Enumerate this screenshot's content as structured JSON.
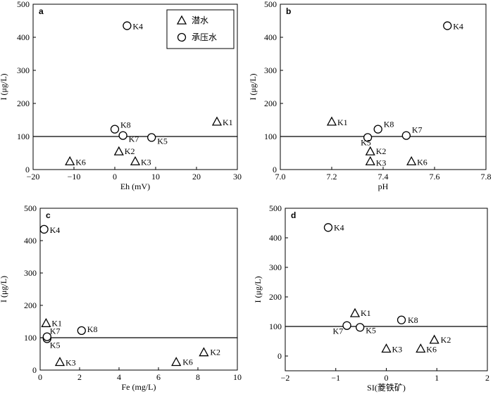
{
  "legend": {
    "phreatic": "潜水",
    "confined": "承压水"
  },
  "chart_data": [
    {
      "type": "scatter",
      "panel_label": "a",
      "xlabel": "Eh (mV)",
      "ylabel": "I (μg/L)",
      "xlim": [
        -20,
        30
      ],
      "ylim": [
        0,
        500
      ],
      "xticks": [
        -20,
        -10,
        0,
        10,
        20,
        30
      ],
      "xtick_labels": [
        "−20",
        "−10",
        "0",
        "10",
        "20",
        "30"
      ],
      "yticks": [
        0,
        100,
        200,
        300,
        400,
        500
      ],
      "ytick_labels": [
        "0",
        "100",
        "200",
        "300",
        "400",
        "500"
      ],
      "reference_line_y": 100,
      "legend_position": "top-right",
      "points": [
        {
          "label": "K1",
          "x": 25,
          "y": 145,
          "marker": "triangle"
        },
        {
          "label": "K2",
          "x": 1,
          "y": 55,
          "marker": "triangle"
        },
        {
          "label": "K3",
          "x": 5,
          "y": 25,
          "marker": "triangle"
        },
        {
          "label": "K6",
          "x": -11,
          "y": 25,
          "marker": "triangle"
        },
        {
          "label": "K4",
          "x": 3,
          "y": 435,
          "marker": "circle"
        },
        {
          "label": "K5",
          "x": 9,
          "y": 97,
          "marker": "circle"
        },
        {
          "label": "K7",
          "x": 2,
          "y": 103,
          "marker": "circle"
        },
        {
          "label": "K8",
          "x": 0,
          "y": 122,
          "marker": "circle"
        }
      ]
    },
    {
      "type": "scatter",
      "panel_label": "b",
      "xlabel": "pH",
      "ylabel": "I (μg/L)",
      "xlim": [
        7.0,
        7.8
      ],
      "ylim": [
        0,
        500
      ],
      "xticks": [
        7.0,
        7.2,
        7.4,
        7.6,
        7.8
      ],
      "xtick_labels": [
        "7.0",
        "7.2",
        "7.4",
        "7.6",
        "7.8"
      ],
      "yticks": [
        0,
        100,
        200,
        300,
        400,
        500
      ],
      "ytick_labels": [
        "0",
        "100",
        "200",
        "300",
        "400",
        "500"
      ],
      "reference_line_y": 100,
      "points": [
        {
          "label": "K1",
          "x": 7.2,
          "y": 145,
          "marker": "triangle"
        },
        {
          "label": "K2",
          "x": 7.35,
          "y": 55,
          "marker": "triangle"
        },
        {
          "label": "K3",
          "x": 7.35,
          "y": 25,
          "marker": "triangle"
        },
        {
          "label": "K6",
          "x": 7.51,
          "y": 25,
          "marker": "triangle"
        },
        {
          "label": "K4",
          "x": 7.65,
          "y": 435,
          "marker": "circle"
        },
        {
          "label": "K5",
          "x": 7.34,
          "y": 97,
          "marker": "circle"
        },
        {
          "label": "K7",
          "x": 7.49,
          "y": 103,
          "marker": "circle"
        },
        {
          "label": "K8",
          "x": 7.38,
          "y": 122,
          "marker": "circle"
        }
      ]
    },
    {
      "type": "scatter",
      "panel_label": "c",
      "xlabel": "Fe (mg/L)",
      "ylabel": "I (μg/L)",
      "xlim": [
        0,
        10
      ],
      "ylim": [
        0,
        500
      ],
      "xticks": [
        0,
        2,
        4,
        6,
        8,
        10
      ],
      "xtick_labels": [
        "0",
        "2",
        "4",
        "6",
        "8",
        "10"
      ],
      "yticks": [
        0,
        100,
        200,
        300,
        400,
        500
      ],
      "ytick_labels": [
        "0",
        "100",
        "200",
        "300",
        "400",
        "500"
      ],
      "reference_line_y": 100,
      "points": [
        {
          "label": "K1",
          "x": 0.3,
          "y": 145,
          "marker": "triangle"
        },
        {
          "label": "K2",
          "x": 8.3,
          "y": 55,
          "marker": "triangle"
        },
        {
          "label": "K3",
          "x": 1.0,
          "y": 25,
          "marker": "triangle"
        },
        {
          "label": "K6",
          "x": 6.9,
          "y": 25,
          "marker": "triangle"
        },
        {
          "label": "K4",
          "x": 0.2,
          "y": 435,
          "marker": "circle"
        },
        {
          "label": "K5",
          "x": 0.35,
          "y": 97,
          "marker": "circle"
        },
        {
          "label": "K7",
          "x": 0.35,
          "y": 103,
          "marker": "circle"
        },
        {
          "label": "K8",
          "x": 2.1,
          "y": 122,
          "marker": "circle"
        }
      ]
    },
    {
      "type": "scatter",
      "panel_label": "d",
      "xlabel": "SI(菱铁矿)",
      "ylabel": "I (μg/L)",
      "xlim": [
        -2,
        2
      ],
      "ylim": [
        -50,
        500
      ],
      "xticks": [
        -2,
        -1,
        0,
        1,
        2
      ],
      "xtick_labels": [
        "−2",
        "−1",
        "0",
        "1",
        "2"
      ],
      "yticks": [
        0,
        100,
        200,
        300,
        400,
        500
      ],
      "ytick_labels": [
        "0",
        "100",
        "200",
        "300",
        "400",
        "500"
      ],
      "reference_line_y": 100,
      "points": [
        {
          "label": "K1",
          "x": -0.62,
          "y": 145,
          "marker": "triangle"
        },
        {
          "label": "K2",
          "x": 0.95,
          "y": 55,
          "marker": "triangle"
        },
        {
          "label": "K3",
          "x": 0.0,
          "y": 25,
          "marker": "triangle"
        },
        {
          "label": "K6",
          "x": 0.68,
          "y": 25,
          "marker": "triangle"
        },
        {
          "label": "K4",
          "x": -1.15,
          "y": 435,
          "marker": "circle"
        },
        {
          "label": "K5",
          "x": -0.52,
          "y": 97,
          "marker": "circle"
        },
        {
          "label": "K7",
          "x": -0.78,
          "y": 103,
          "marker": "circle"
        },
        {
          "label": "K8",
          "x": 0.3,
          "y": 122,
          "marker": "circle"
        }
      ]
    }
  ]
}
